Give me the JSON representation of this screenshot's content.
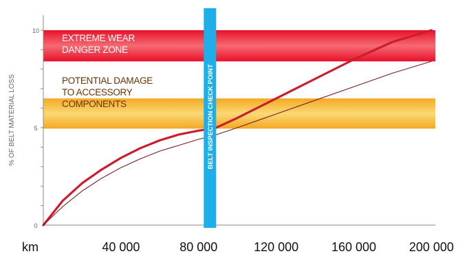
{
  "chart_data": {
    "type": "line",
    "ylabel": "% OF BELT MATERIAL LOSS",
    "x_unit_label": "km",
    "x_ticks": [
      {
        "value": 40000,
        "label": "40 000"
      },
      {
        "value": 80000,
        "label": "80 000"
      },
      {
        "value": 120000,
        "label": "120 000"
      },
      {
        "value": 160000,
        "label": "160 000"
      },
      {
        "value": 200000,
        "label": "200 000"
      }
    ],
    "y_ticks": [
      {
        "value": 0,
        "label": "0"
      },
      {
        "value": 5,
        "label": "5"
      },
      {
        "value": 10,
        "label": "10"
      }
    ],
    "xlim": [
      0,
      202000
    ],
    "ylim": [
      0,
      10.5
    ],
    "zones": [
      {
        "id": "danger",
        "label_lines": [
          "EXTREME WEAR",
          "DANGER ZONE"
        ],
        "y_range": [
          8.4,
          10
        ],
        "color_edge": "#e8102a",
        "color_center": "#f56a72",
        "text_color": "#ffffff"
      },
      {
        "id": "potential",
        "label_lines": [
          "POTENTIAL DAMAGE",
          "TO ACCESSORY",
          "COMPONENTS"
        ],
        "y_range": [
          4.95,
          6.5
        ],
        "color_edge": "#f3a823",
        "color_center": "#fbd974",
        "text_color": "#6b3300"
      }
    ],
    "checkpoint": {
      "label": "BELT INSPECTION CHECK POINT",
      "x": 88000,
      "color": "#1eaee8",
      "text_color": "#ffffff"
    },
    "series": [
      {
        "style": "solid-thick",
        "color": "#cc1d2e",
        "x": [
          0,
          10000,
          20000,
          30000,
          40000,
          50000,
          60000,
          70000,
          80000,
          88000,
          100000,
          120000,
          140000,
          160000,
          180000,
          200000
        ],
        "y": [
          0,
          1.25,
          2.15,
          2.85,
          3.45,
          3.95,
          4.35,
          4.65,
          4.85,
          4.95,
          5.5,
          6.5,
          7.5,
          8.5,
          9.4,
          10
        ]
      },
      {
        "style": "thin",
        "color": "#7a1a22",
        "x": [
          0,
          10000,
          20000,
          30000,
          40000,
          50000,
          60000,
          70000,
          80000,
          88000,
          100000,
          120000,
          140000,
          160000,
          180000,
          200000
        ],
        "y": [
          0,
          0.95,
          1.75,
          2.4,
          2.95,
          3.4,
          3.8,
          4.1,
          4.4,
          4.6,
          5.0,
          5.7,
          6.4,
          7.1,
          7.8,
          8.4
        ]
      }
    ],
    "grid": false,
    "legend": "none"
  }
}
